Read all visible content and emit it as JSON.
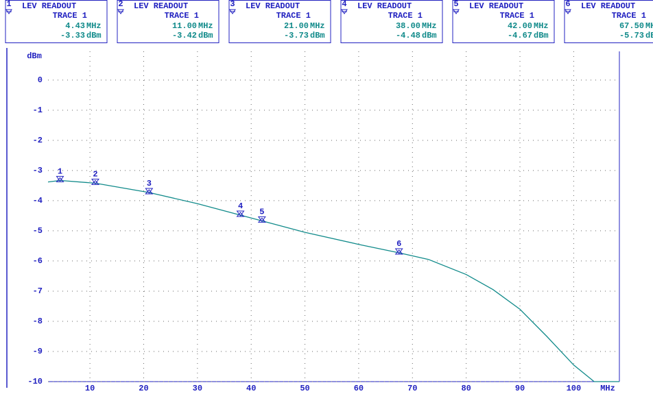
{
  "readouts": [
    {
      "index": "1",
      "title": "LEV READOUT",
      "trace": "TRACE 1",
      "freq": "4.43",
      "freq_unit": "MHz",
      "level": "-3.33",
      "level_unit": "dBm"
    },
    {
      "index": "2",
      "title": "LEV READOUT",
      "trace": "TRACE 1",
      "freq": "11.00",
      "freq_unit": "MHz",
      "level": "-3.42",
      "level_unit": "dBm"
    },
    {
      "index": "3",
      "title": "LEV READOUT",
      "trace": "TRACE 1",
      "freq": "21.00",
      "freq_unit": "MHz",
      "level": "-3.73",
      "level_unit": "dBm"
    },
    {
      "index": "4",
      "title": "LEV READOUT",
      "trace": "TRACE 1",
      "freq": "38.00",
      "freq_unit": "MHz",
      "level": "-4.48",
      "level_unit": "dBm"
    },
    {
      "index": "5",
      "title": "LEV READOUT",
      "trace": "TRACE 1",
      "freq": "42.00",
      "freq_unit": "MHz",
      "level": "-4.67",
      "level_unit": "dBm"
    },
    {
      "index": "6",
      "title": "LEV READOUT",
      "trace": "TRACE 1",
      "freq": "67.50",
      "freq_unit": "MHz",
      "level": "-5.73",
      "level_unit": "dBm"
    }
  ],
  "chart_data": {
    "type": "line",
    "y_label": "dBm",
    "x_label": "MHz",
    "series": [
      {
        "name": "TRACE 1",
        "color": "#108a8a",
        "x": [
          2.2,
          4.43,
          11,
          21,
          30,
          38,
          42,
          50,
          60,
          67.5,
          73,
          80,
          85,
          90,
          95,
          100,
          103.8,
          108.5
        ],
        "values": [
          -3.38,
          -3.33,
          -3.42,
          -3.73,
          -4.1,
          -4.48,
          -4.67,
          -5.05,
          -5.45,
          -5.73,
          -5.95,
          -6.45,
          -6.95,
          -7.6,
          -8.5,
          -9.45,
          -10,
          -10
        ]
      }
    ],
    "markers": {
      "labels": [
        "1",
        "2",
        "3",
        "4",
        "5",
        "6"
      ],
      "x": [
        4.43,
        11,
        21,
        38,
        42,
        67.5
      ],
      "values": [
        -3.33,
        -3.42,
        -3.73,
        -4.48,
        -4.67,
        -5.73
      ],
      "color": "#2020c0"
    },
    "xlim": [
      2.2,
      108.5
    ],
    "ylim": [
      -10,
      0.95
    ],
    "xticks": [
      10,
      20,
      30,
      40,
      50,
      60,
      70,
      80,
      90,
      100
    ],
    "yticks": [
      0,
      -1,
      -2,
      -3,
      -4,
      -5,
      -6,
      -7,
      -8,
      -9,
      -10
    ],
    "grid": true
  }
}
